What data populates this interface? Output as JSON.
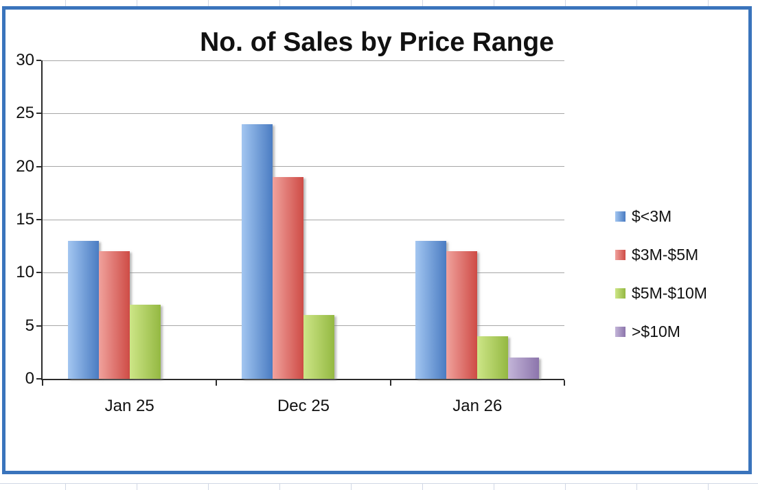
{
  "chart_data": {
    "type": "bar",
    "title": "No. of Sales by Price Range",
    "categories": [
      "Jan 25",
      "Dec 25",
      "Jan 26"
    ],
    "series": [
      {
        "name": "$<3M",
        "values": [
          13,
          24,
          13
        ],
        "color": "#4a7cc2",
        "color_light": "#a3c6f1"
      },
      {
        "name": "$3M-$5M",
        "values": [
          12,
          19,
          12
        ],
        "color": "#ce4b45",
        "color_light": "#f0a29d"
      },
      {
        "name": "$5M-$10M",
        "values": [
          7,
          6,
          4
        ],
        "color": "#94b842",
        "color_light": "#cde687"
      },
      {
        "name": ">$10M",
        "values": [
          0,
          0,
          2
        ],
        "color": "#8c75ac",
        "color_light": "#c3b5d8"
      }
    ],
    "ylim": [
      0,
      30
    ],
    "yticks": [
      0,
      5,
      10,
      15,
      20,
      25,
      30
    ],
    "grid": true,
    "legend_position": "right"
  },
  "frame": {
    "selection_border_color": "#3a74bc",
    "sheet_grid_color": "#d0d7e5"
  }
}
